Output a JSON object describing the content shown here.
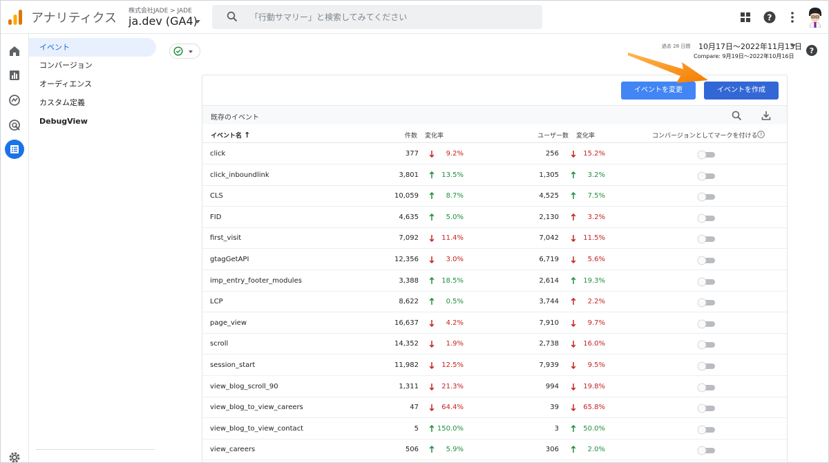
{
  "app": {
    "name": "アナリティクス",
    "account_path": "株式会社JADE > JADE",
    "property": "ja.dev (GA4)"
  },
  "search": {
    "placeholder": "「行動サマリー」と検索してみてください"
  },
  "nav": {
    "items": [
      {
        "label": "イベント",
        "selected": true
      },
      {
        "label": "コンバージョン"
      },
      {
        "label": "オーディエンス"
      },
      {
        "label": "カスタム定義"
      },
      {
        "label": "DebugView"
      }
    ]
  },
  "date": {
    "period_label": "過去 28 日間",
    "range": "10月17日〜2022年11月13日",
    "compare": "Compare: 9月19日〜2022年10月16日"
  },
  "buttons": {
    "modify": "イベントを変更",
    "create": "イベントを作成"
  },
  "table": {
    "title": "既存のイベント",
    "headers": {
      "name": "イベント名",
      "count": "件数",
      "change1": "変化率",
      "users": "ユーザー数",
      "change2": "変化率",
      "conversion": "コンバージョンとしてマークを付ける"
    },
    "rows": [
      {
        "name": "click",
        "count": "377",
        "d1": "down",
        "p1": "9.2%",
        "users": "256",
        "d2": "down",
        "p2": "15.2%"
      },
      {
        "name": "click_inboundlink",
        "count": "3,801",
        "d1": "up",
        "p1": "13.5%",
        "users": "1,305",
        "d2": "up",
        "p2": "3.2%"
      },
      {
        "name": "CLS",
        "count": "10,059",
        "d1": "up",
        "p1": "8.7%",
        "users": "4,525",
        "d2": "up",
        "p2": "7.5%"
      },
      {
        "name": "FID",
        "count": "4,635",
        "d1": "up",
        "p1": "5.0%",
        "users": "2,130",
        "d2": "down-red-up",
        "p2": "3.2%"
      },
      {
        "name": "first_visit",
        "count": "7,092",
        "d1": "down",
        "p1": "11.4%",
        "users": "7,042",
        "d2": "down",
        "p2": "11.5%"
      },
      {
        "name": "gtagGetAPI",
        "count": "12,356",
        "d1": "down",
        "p1": "3.0%",
        "users": "6,719",
        "d2": "down",
        "p2": "5.6%"
      },
      {
        "name": "imp_entry_footer_modules",
        "count": "3,388",
        "d1": "up",
        "p1": "18.5%",
        "users": "2,614",
        "d2": "up",
        "p2": "19.3%"
      },
      {
        "name": "LCP",
        "count": "8,622",
        "d1": "up",
        "p1": "0.5%",
        "users": "3,744",
        "d2": "down-red-up",
        "p2": "2.2%"
      },
      {
        "name": "page_view",
        "count": "16,637",
        "d1": "down",
        "p1": "4.2%",
        "users": "7,910",
        "d2": "down",
        "p2": "9.7%"
      },
      {
        "name": "scroll",
        "count": "14,352",
        "d1": "down",
        "p1": "1.9%",
        "users": "2,738",
        "d2": "down",
        "p2": "16.0%"
      },
      {
        "name": "session_start",
        "count": "11,982",
        "d1": "down",
        "p1": "12.5%",
        "users": "7,939",
        "d2": "down",
        "p2": "9.5%"
      },
      {
        "name": "view_blog_scroll_90",
        "count": "1,311",
        "d1": "down",
        "p1": "21.3%",
        "users": "994",
        "d2": "down",
        "p2": "19.8%"
      },
      {
        "name": "view_blog_to_view_careers",
        "count": "47",
        "d1": "down",
        "p1": "64.4%",
        "users": "39",
        "d2": "down",
        "p2": "65.8%"
      },
      {
        "name": "view_blog_to_view_contact",
        "count": "5",
        "d1": "up",
        "p1": "150.0%",
        "users": "3",
        "d2": "up",
        "p2": "50.0%"
      },
      {
        "name": "view_careers",
        "count": "506",
        "d1": "up",
        "p1": "5.9%",
        "users": "306",
        "d2": "up",
        "p2": "2.0%"
      }
    ]
  },
  "colors": {
    "accent": "#1a73e8",
    "up": "#1e8e3e",
    "down": "#c5221f",
    "pointer": "#f57c00"
  }
}
